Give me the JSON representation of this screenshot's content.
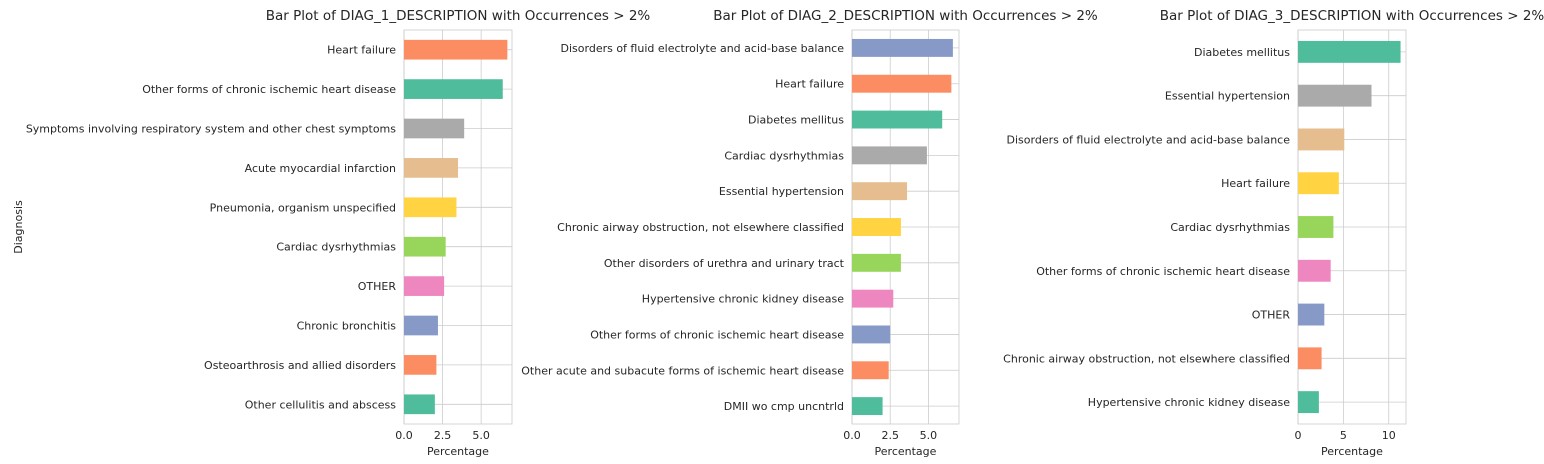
{
  "chart_data": [
    {
      "type": "bar",
      "orientation": "horizontal",
      "title": "Bar Plot of DIAG_1_DESCRIPTION with Occurrences > 2%",
      "xlabel": "Percentage",
      "ylabel": "Diagnosis",
      "xlim": [
        0,
        7.0
      ],
      "xticks": [
        0,
        2.5,
        5
      ],
      "xtick_labels": [
        "0.0",
        "2.5",
        "5.0"
      ],
      "grid": true,
      "categories": [
        "Heart failure",
        "Other forms of chronic ischemic heart disease",
        "Symptoms involving respiratory system and other chest symptoms",
        "Acute myocardial infarction",
        "Pneumonia, organism unspecified",
        "Cardiac dysrhythmias",
        "OTHER",
        "Chronic bronchitis",
        "Osteoarthrosis and allied disorders",
        "Other cellulitis and abscess"
      ],
      "values": [
        6.7,
        6.4,
        3.9,
        3.5,
        3.4,
        2.7,
        2.6,
        2.2,
        2.1,
        2.0
      ],
      "colors": [
        "#fc8d62",
        "#4fbc9c",
        "#aaaaaa",
        "#e5bd8f",
        "#ffd341",
        "#97d65a",
        "#ee86c0",
        "#8799c6",
        "#fc8d62",
        "#4fbc9c"
      ]
    },
    {
      "type": "bar",
      "orientation": "horizontal",
      "title": "Bar Plot of DIAG_2_DESCRIPTION with Occurrences > 2%",
      "xlabel": "Percentage",
      "ylabel": "",
      "xlim": [
        0,
        7.0
      ],
      "xticks": [
        0,
        2.5,
        5
      ],
      "xtick_labels": [
        "0.0",
        "2.5",
        "5.0"
      ],
      "grid": true,
      "categories": [
        "Disorders of fluid electrolyte and acid-base balance",
        "Heart failure",
        "Diabetes mellitus",
        "Cardiac dysrhythmias",
        "Essential hypertension",
        "Chronic airway obstruction, not elsewhere classified",
        "Other disorders of urethra and urinary tract",
        "Hypertensive chronic kidney disease",
        "Other forms of chronic ischemic heart disease",
        "Other acute and subacute forms of ischemic heart disease",
        "DMII wo cmp uncntrld"
      ],
      "values": [
        6.6,
        6.5,
        5.9,
        4.9,
        3.6,
        3.2,
        3.2,
        2.7,
        2.5,
        2.4,
        2.0
      ],
      "colors": [
        "#8799c6",
        "#fc8d62",
        "#4fbc9c",
        "#aaaaaa",
        "#e5bd8f",
        "#ffd341",
        "#97d65a",
        "#ee86c0",
        "#8799c6",
        "#fc8d62",
        "#4fbc9c"
      ]
    },
    {
      "type": "bar",
      "orientation": "horizontal",
      "title": "Bar Plot of DIAG_3_DESCRIPTION with Occurrences > 2%",
      "xlabel": "Percentage",
      "ylabel": "",
      "xlim": [
        0,
        11.9
      ],
      "xticks": [
        0,
        5,
        10
      ],
      "xtick_labels": [
        "0",
        "5",
        "10"
      ],
      "grid": true,
      "categories": [
        "Diabetes mellitus",
        "Essential hypertension",
        "Disorders of fluid electrolyte and acid-base balance",
        "Heart failure",
        "Cardiac dysrhythmias",
        "Other forms of chronic ischemic heart disease",
        "OTHER",
        "Chronic airway obstruction, not elsewhere classified",
        "Hypertensive chronic kidney disease"
      ],
      "values": [
        11.3,
        8.1,
        5.1,
        4.5,
        3.9,
        3.6,
        2.9,
        2.6,
        2.3
      ],
      "colors": [
        "#4fbc9c",
        "#aaaaaa",
        "#e5bd8f",
        "#ffd341",
        "#97d65a",
        "#ee86c0",
        "#8799c6",
        "#fc8d62",
        "#4fbc9c"
      ]
    }
  ]
}
